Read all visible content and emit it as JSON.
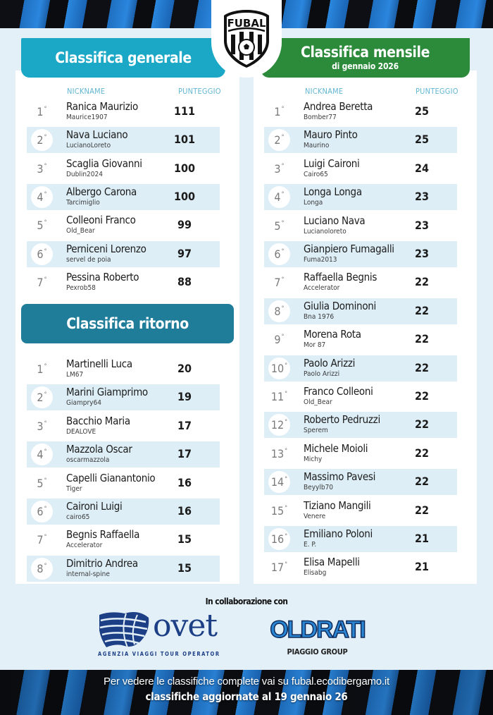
{
  "brand": {
    "logo_text": "FUBAL"
  },
  "colors": {
    "generale_header": "#1aa8c6",
    "mensile_header": "#2b8b3b",
    "ritorno_header": "#1f7d9a",
    "row_alt": "#ddeef6",
    "column_header": "#62b6d2",
    "background": "#e3f0f7"
  },
  "generale": {
    "title": "Classifica generale",
    "col_nickname": "NICKNAME",
    "col_score": "PUNTEGGIO",
    "rows": [
      {
        "rank": "1",
        "name": "Ranica Maurizio",
        "nick": "Maurice1907",
        "score": "111"
      },
      {
        "rank": "2",
        "name": "Nava Luciano",
        "nick": "LucianoLoreto",
        "score": "101"
      },
      {
        "rank": "3",
        "name": "Scaglia Giovanni",
        "nick": "Dublin2024",
        "score": "100"
      },
      {
        "rank": "4",
        "name": "Albergo Carona",
        "nick": "Tarcimiglio",
        "score": "100"
      },
      {
        "rank": "5",
        "name": "Colleoni Franco",
        "nick": "Old_Bear",
        "score": "99"
      },
      {
        "rank": "6",
        "name": "Perniceni Lorenzo",
        "nick": "servel de poia",
        "score": "97"
      },
      {
        "rank": "7",
        "name": "Pessina Roberto",
        "nick": "Pexrob58",
        "score": "88"
      }
    ]
  },
  "ritorno": {
    "title": "Classifica ritorno",
    "rows": [
      {
        "rank": "1",
        "name": "Martinelli Luca",
        "nick": "LM67",
        "score": "20"
      },
      {
        "rank": "2",
        "name": "Marini Giamprimo",
        "nick": "Giampry64",
        "score": "19"
      },
      {
        "rank": "3",
        "name": "Bacchio Maria",
        "nick": "DEALOVE",
        "score": "17"
      },
      {
        "rank": "4",
        "name": "Mazzola Oscar",
        "nick": "oscarmazzola",
        "score": "17"
      },
      {
        "rank": "5",
        "name": "Capelli Gianantonio",
        "nick": "Tiger",
        "score": "16"
      },
      {
        "rank": "6",
        "name": "Caironi Luigi",
        "nick": "cairo65",
        "score": "16"
      },
      {
        "rank": "7",
        "name": "Begnis Raffaella",
        "nick": "Accelerator",
        "score": "15"
      },
      {
        "rank": "8",
        "name": "Dimitrio Andrea",
        "nick": "internal-spine",
        "score": "15"
      }
    ]
  },
  "mensile": {
    "title": "Classifica mensile",
    "subtitle": "di gennaio 2026",
    "col_nickname": "NICKNAME",
    "col_score": "PUNTEGGIO",
    "rows": [
      {
        "rank": "1",
        "name": "Andrea Beretta",
        "nick": "Bomber77",
        "score": "25"
      },
      {
        "rank": "2",
        "name": "Mauro Pinto",
        "nick": "Maurino",
        "score": "25"
      },
      {
        "rank": "3",
        "name": "Luigi Caironi",
        "nick": "Cairo65",
        "score": "24"
      },
      {
        "rank": "4",
        "name": "Longa Longa",
        "nick": "Longa",
        "score": "23"
      },
      {
        "rank": "5",
        "name": "Luciano Nava",
        "nick": "Lucianoloreto",
        "score": "23"
      },
      {
        "rank": "6",
        "name": "Gianpiero Fumagalli",
        "nick": "Fuma2013",
        "score": "23"
      },
      {
        "rank": "7",
        "name": "Raffaella Begnis",
        "nick": "Accelerator",
        "score": "22"
      },
      {
        "rank": "8",
        "name": "Giulia Dominoni",
        "nick": "Bna 1976",
        "score": "22"
      },
      {
        "rank": "9",
        "name": "Morena Rota",
        "nick": "Mor 87",
        "score": "22"
      },
      {
        "rank": "10",
        "name": "Paolo Arizzi",
        "nick": "Paolo Arizzi",
        "score": "22"
      },
      {
        "rank": "11",
        "name": "Franco Colleoni",
        "nick": "Old_Bear",
        "score": "22"
      },
      {
        "rank": "12",
        "name": "Roberto Pedruzzi",
        "nick": "Sperem",
        "score": "22"
      },
      {
        "rank": "13",
        "name": "Michele Moioli",
        "nick": "Michy",
        "score": "22"
      },
      {
        "rank": "14",
        "name": "Massimo Pavesi",
        "nick": "Beyylb70",
        "score": "22"
      },
      {
        "rank": "15",
        "name": "Tiziano Mangili",
        "nick": "Venere",
        "score": "22"
      },
      {
        "rank": "16",
        "name": "Emiliano Poloni",
        "nick": "E. P.",
        "score": "21"
      },
      {
        "rank": "17",
        "name": "Elisa Mapelli",
        "nick": "Elisabg",
        "score": "21"
      }
    ]
  },
  "sponsors": {
    "intro": "In collaborazione con",
    "ovet": {
      "word": "ovet",
      "tagline": "AGENZIA VIAGGI TOUR OPERATOR"
    },
    "oldrati": {
      "word": "OLDRATI",
      "tagline": "PIAGGIO GROUP"
    }
  },
  "footer": {
    "line1": "Per vedere le classifiche complete vai su fubal.ecodibergamo.it",
    "line2": "classifiche aggiornate al 19 gennaio 26"
  },
  "degree_symbol": "°"
}
